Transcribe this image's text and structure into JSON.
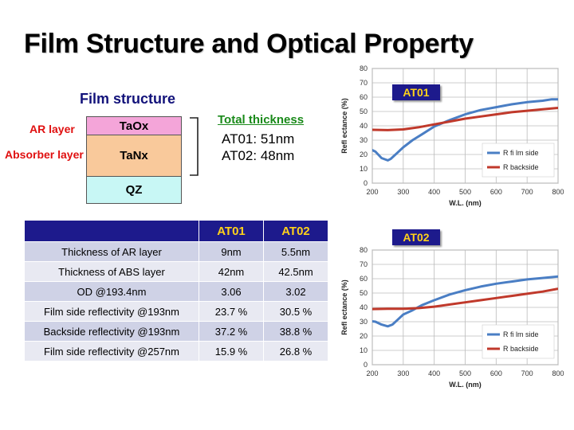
{
  "title": "Film Structure and Optical Property",
  "film_structure": {
    "heading": "Film structure",
    "layers": [
      "TaOx",
      "TaNx",
      "QZ"
    ],
    "side_labels": [
      "AR layer",
      "Absorber layer"
    ],
    "total_thickness_heading": "Total thickness",
    "thickness_lines": [
      "AT01: 51nm",
      "AT02: 48nm"
    ],
    "colors": {
      "taox": "#f4a5d9",
      "tanx": "#f9c99b",
      "qz": "#c8f7f5"
    }
  },
  "table": {
    "headers": [
      "",
      "AT01",
      "AT02"
    ],
    "rows": [
      [
        "Thickness of AR layer",
        "9nm",
        "5.5nm"
      ],
      [
        "Thickness of ABS layer",
        "42nm",
        "42.5nm"
      ],
      [
        "OD @193.4nm",
        "3.06",
        "3.02"
      ],
      [
        "Film side reflectivity @193nm",
        "23.7 %",
        "30.5 %"
      ],
      [
        "Backside reflectivity @193nm",
        "37.2 %",
        "38.8 %"
      ],
      [
        "Film side reflectivity @257nm",
        "15.9 %",
        "26.8 %"
      ]
    ]
  },
  "chart_data": [
    {
      "type": "line",
      "title": "AT01",
      "xlabel": "W.L. (nm)",
      "ylabel": "Refl ectance (%)",
      "xlim": [
        200,
        800
      ],
      "ylim": [
        0,
        80
      ],
      "xticks": [
        200,
        300,
        400,
        500,
        600,
        700,
        800
      ],
      "yticks": [
        0,
        10,
        20,
        30,
        40,
        50,
        60,
        70,
        80
      ],
      "grid": true,
      "legend": "bottom-right",
      "series": [
        {
          "name": "R fi lm side",
          "color": "#4a7ec4",
          "x": [
            193,
            210,
            230,
            250,
            260,
            280,
            300,
            330,
            360,
            400,
            450,
            500,
            550,
            600,
            650,
            700,
            750,
            780,
            800
          ],
          "y": [
            23.7,
            22,
            17.5,
            15.9,
            17,
            21,
            25,
            30,
            34,
            39.5,
            44,
            48,
            51,
            53,
            55,
            56.5,
            57.5,
            58.5,
            58.5
          ]
        },
        {
          "name": "R backside",
          "color": "#c0392b",
          "x": [
            193,
            250,
            300,
            350,
            400,
            450,
            500,
            550,
            600,
            650,
            700,
            750,
            800
          ],
          "y": [
            37.2,
            37,
            37.5,
            39,
            41,
            43,
            45,
            46.5,
            48,
            49.5,
            50.5,
            51.5,
            52.5
          ]
        }
      ]
    },
    {
      "type": "line",
      "title": "AT02",
      "xlabel": "W.L. (nm)",
      "ylabel": "Refl ectance (%)",
      "xlim": [
        200,
        800
      ],
      "ylim": [
        0,
        80
      ],
      "xticks": [
        200,
        300,
        400,
        500,
        600,
        700,
        800
      ],
      "yticks": [
        0,
        10,
        20,
        30,
        40,
        50,
        60,
        70,
        80
      ],
      "grid": true,
      "legend": "bottom-right",
      "series": [
        {
          "name": "R fi lm side",
          "color": "#4a7ec4",
          "x": [
            193,
            210,
            230,
            250,
            265,
            280,
            300,
            330,
            360,
            400,
            450,
            500,
            550,
            600,
            650,
            700,
            750,
            800
          ],
          "y": [
            30.5,
            30,
            28,
            26.8,
            28,
            31,
            35,
            38,
            41.5,
            45,
            49,
            52,
            54.5,
            56.5,
            58,
            59.5,
            60.5,
            61.5
          ]
        },
        {
          "name": "R backside",
          "color": "#c0392b",
          "x": [
            193,
            250,
            300,
            350,
            400,
            450,
            500,
            550,
            600,
            650,
            700,
            750,
            800
          ],
          "y": [
            38.8,
            39,
            39,
            39.5,
            40.5,
            42,
            43.5,
            45,
            46.5,
            48,
            49.5,
            51,
            53
          ]
        }
      ]
    }
  ]
}
